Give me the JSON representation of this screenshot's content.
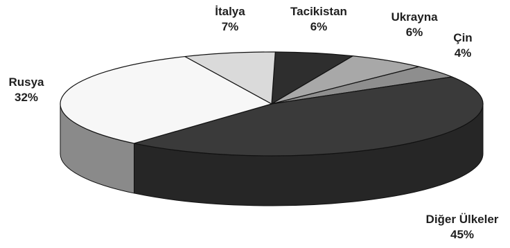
{
  "chart_data": {
    "type": "pie",
    "style": "3d",
    "slices": [
      {
        "label": "Tacikistan",
        "value": 6,
        "value_label": "6%",
        "color": "#2e2e2e",
        "side": "#1e1e1e"
      },
      {
        "label": "Ukrayna",
        "value": 6,
        "value_label": "6%",
        "color": "#a8a8a8",
        "side": "#7a7a7a"
      },
      {
        "label": "Çin",
        "value": 4,
        "value_label": "4%",
        "color": "#8e8e8e",
        "side": "#666666"
      },
      {
        "label": "Diğer Ülkeler",
        "value": 45,
        "value_label": "45%",
        "color": "#3a3a3a",
        "side": "#262626"
      },
      {
        "label": "Rusya",
        "value": 32,
        "value_label": "32%",
        "color": "#f7f7f7",
        "side": "#8a8a8a"
      },
      {
        "label": "İtalya",
        "value": 7,
        "value_label": "7%",
        "color": "#dadada",
        "side": "#a0a0a0"
      }
    ]
  }
}
